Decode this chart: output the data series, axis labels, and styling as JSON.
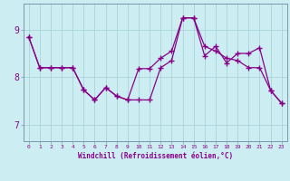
{
  "xlabel": "Windchill (Refroidissement éolien,°C)",
  "background_color": "#cceef2",
  "line_color": "#880088",
  "grid_color": "#aad4d8",
  "x_ticks": [
    0,
    1,
    2,
    3,
    4,
    5,
    6,
    7,
    8,
    9,
    10,
    11,
    12,
    13,
    14,
    15,
    16,
    17,
    18,
    19,
    20,
    21,
    22,
    23
  ],
  "y_ticks": [
    7,
    8,
    9
  ],
  "xlim": [
    -0.5,
    23.5
  ],
  "ylim": [
    6.65,
    9.55
  ],
  "series1_x": [
    0,
    1,
    2,
    3,
    4,
    5,
    6,
    7,
    8,
    9,
    10,
    11,
    12,
    13,
    14,
    15,
    16,
    17,
    18,
    19,
    20,
    21,
    22,
    23
  ],
  "series1_y": [
    8.85,
    8.2,
    8.2,
    8.2,
    8.2,
    7.73,
    7.52,
    7.78,
    7.6,
    7.52,
    7.52,
    7.52,
    8.2,
    8.35,
    9.25,
    9.25,
    8.65,
    8.55,
    8.4,
    8.35,
    8.2,
    8.2,
    7.72,
    7.45
  ],
  "series2_x": [
    0,
    1,
    2,
    3,
    4,
    5,
    6,
    7,
    8,
    9,
    10,
    11,
    12,
    13,
    14,
    15,
    16,
    17,
    18,
    19,
    20,
    21,
    22,
    23
  ],
  "series2_y": [
    8.85,
    8.2,
    8.2,
    8.2,
    8.2,
    7.73,
    7.52,
    7.78,
    7.6,
    7.52,
    8.18,
    8.18,
    8.4,
    8.55,
    9.25,
    9.25,
    8.45,
    8.65,
    8.3,
    8.5,
    8.5,
    8.62,
    7.72,
    7.45
  ]
}
